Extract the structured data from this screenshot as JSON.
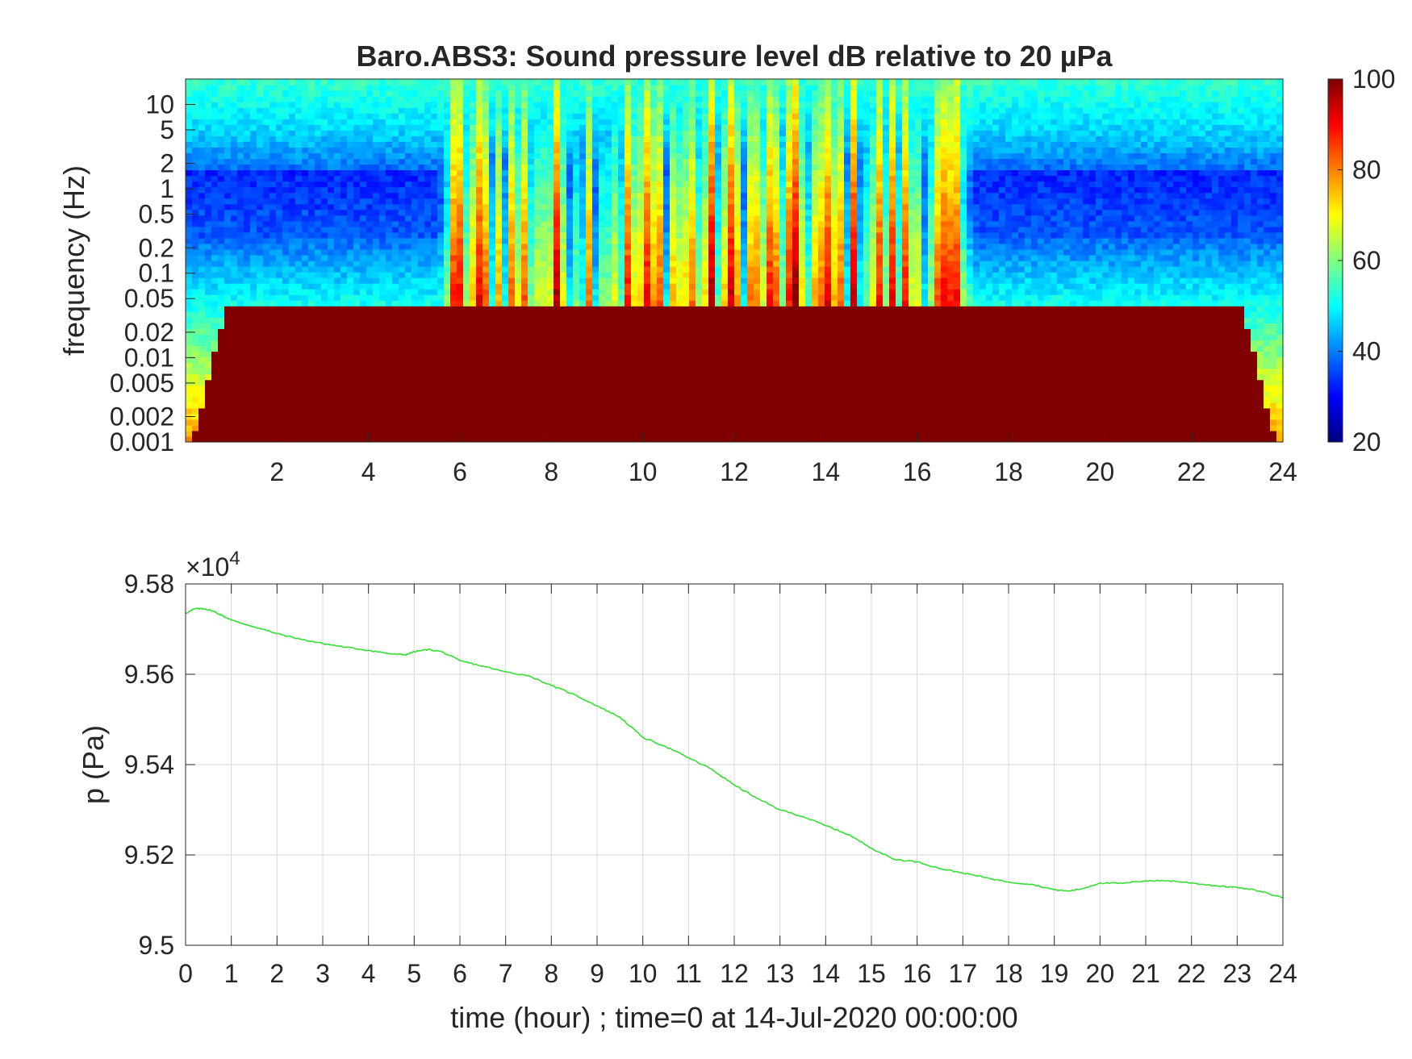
{
  "chart_data": [
    {
      "type": "heatmap",
      "title": "Baro.ABS3: Sound pressure level dB relative to 20 µPa",
      "ylabel": "frequency (Hz)",
      "xlabel": "",
      "x_ticks": [
        "2",
        "4",
        "6",
        "8",
        "10",
        "12",
        "14",
        "16",
        "18",
        "20",
        "22",
        "24"
      ],
      "x_tick_values": [
        2,
        4,
        6,
        8,
        10,
        12,
        14,
        16,
        18,
        20,
        22,
        24
      ],
      "xlim": [
        0,
        24
      ],
      "y_scale": "log",
      "ylim": [
        0.001,
        20
      ],
      "y_ticks": [
        "10",
        "5",
        "2",
        "1",
        "0.5",
        "0.2",
        "0.1",
        "0.05",
        "0.02",
        "0.01",
        "0.005",
        "0.002",
        "0.001"
      ],
      "y_tick_values": [
        10,
        5,
        2,
        1,
        0.5,
        0.2,
        0.1,
        0.05,
        0.02,
        0.01,
        0.005,
        0.002,
        0.001
      ],
      "colorbar": {
        "range": [
          20,
          100
        ],
        "ticks": [
          "100",
          "80",
          "60",
          "40",
          "20"
        ],
        "tick_values": [
          100,
          80,
          60,
          40,
          20
        ],
        "colormap": "jet"
      },
      "activity_window_hours": [
        5.5,
        17.2
      ],
      "grid": false
    },
    {
      "type": "line",
      "title": "",
      "xlabel": "time (hour) ; time=0 at 14-Jul-2020 00:00:00",
      "ylabel": "p (Pa)",
      "y_exponent_label": "×10",
      "y_exponent_power": "4",
      "y_scale_factor": 10000,
      "xlim": [
        0,
        24
      ],
      "ylim": [
        95000,
        95800
      ],
      "x_ticks": [
        "0",
        "1",
        "2",
        "3",
        "4",
        "5",
        "6",
        "7",
        "8",
        "9",
        "10",
        "11",
        "12",
        "13",
        "14",
        "15",
        "16",
        "17",
        "18",
        "19",
        "20",
        "21",
        "22",
        "23",
        "24"
      ],
      "x_tick_values": [
        0,
        1,
        2,
        3,
        4,
        5,
        6,
        7,
        8,
        9,
        10,
        11,
        12,
        13,
        14,
        15,
        16,
        17,
        18,
        19,
        20,
        21,
        22,
        23,
        24
      ],
      "y_ticks": [
        "9.58",
        "9.56",
        "9.54",
        "9.52",
        "9.5"
      ],
      "y_tick_values": [
        95800,
        95600,
        95400,
        95200,
        95000
      ],
      "grid": true,
      "color": "#33e033",
      "series": [
        {
          "x": [
            0,
            0.2,
            0.4,
            0.6,
            0.8,
            1,
            1.5,
            2,
            2.5,
            3,
            3.5,
            4,
            4.5,
            4.8,
            5,
            5.3,
            5.6,
            6,
            6.5,
            7,
            7.5,
            8,
            8.5,
            9,
            9.5,
            10,
            10.5,
            11,
            11.5,
            12,
            12.5,
            13,
            13.5,
            14,
            14.5,
            15,
            15.5,
            16,
            16.5,
            17,
            17.5,
            18,
            18.5,
            19,
            19.3,
            19.6,
            20,
            20.5,
            21,
            21.5,
            22,
            22.5,
            23,
            23.5,
            24
          ],
          "values": [
            95735,
            95745,
            95745,
            95740,
            95730,
            95720,
            95705,
            95690,
            95678,
            95668,
            95660,
            95653,
            95645,
            95643,
            95650,
            95655,
            95650,
            95630,
            95618,
            95605,
            95597,
            95575,
            95555,
            95530,
            95505,
            95460,
            95440,
            95415,
            95390,
            95355,
            95325,
            95300,
            95285,
            95265,
            95245,
            95215,
            95190,
            95185,
            95170,
            95160,
            95150,
            95140,
            95135,
            95123,
            95120,
            95125,
            95138,
            95137,
            95143,
            95143,
            95138,
            95132,
            95128,
            95120,
            95105
          ]
        }
      ]
    }
  ]
}
